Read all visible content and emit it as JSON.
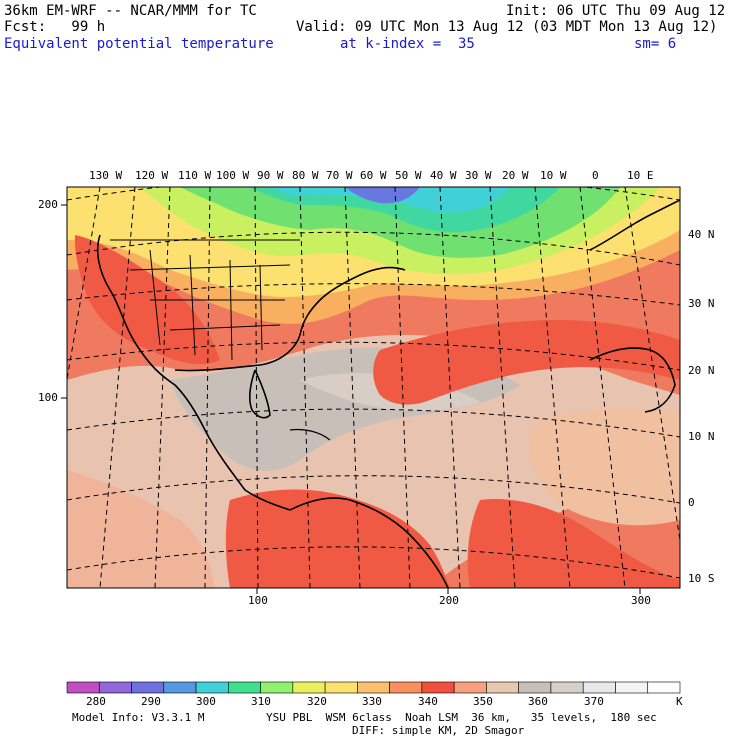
{
  "header": {
    "model_title": "36km EM-WRF -- NCAR/MMM for TC",
    "init": "Init: 06 UTC Thu 09 Aug 12",
    "fcst": "Fcst:   99 h",
    "valid": "Valid: 09 UTC Mon 13 Aug 12 (03 MDT Mon 13 Aug 12)",
    "field": "Equivalent potential temperature",
    "level": "at k-index =  35",
    "smoothing": "sm= 6"
  },
  "map": {
    "lon_labels": [
      "130 W",
      "120 W",
      "110 W",
      "100 W",
      "90 W",
      "80 W",
      "70 W",
      "60 W",
      "50 W",
      "40 W",
      "30 W",
      "20 W",
      "10 W",
      "0",
      "10 E"
    ],
    "lat_labels": [
      "40 N",
      "30 N",
      "20 N",
      "10 N",
      "0",
      "10 S"
    ],
    "grid_y_labels": [
      "200",
      "100"
    ],
    "grid_x_labels": [
      "100",
      "200",
      "300"
    ]
  },
  "colorbar": {
    "labels": [
      "280",
      "290",
      "300",
      "310",
      "320",
      "330",
      "340",
      "350",
      "360",
      "370"
    ],
    "unit": "K",
    "colors": [
      "#c050c0",
      "#9068d8",
      "#7070e0",
      "#5898e0",
      "#40d0d8",
      "#40e090",
      "#90f070",
      "#e8f060",
      "#fce070",
      "#fcc070",
      "#f89060",
      "#f05040",
      "#f8a080",
      "#e8c8b0",
      "#c8c0b8",
      "#d8d0c8",
      "#e8e8e8",
      "#f4f4f4",
      "#ffffff"
    ]
  },
  "footer": {
    "model_info": "Model Info: V3.3.1 M",
    "physics": "YSU PBL  WSM 6class  Noah LSM  36 km,   35 levels,  180 sec",
    "diffusion": "DIFF: simple KM, 2D Smagor"
  }
}
